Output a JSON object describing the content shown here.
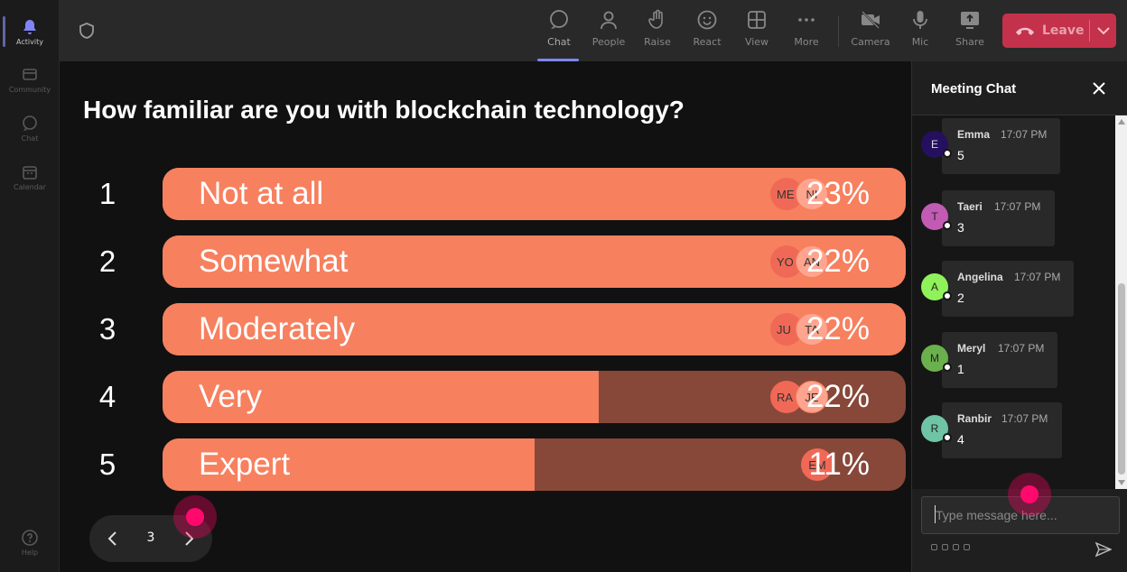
{
  "rail": {
    "items": [
      {
        "label": "Activity",
        "icon": "bell-icon",
        "active": true
      },
      {
        "label": "Community",
        "icon": "community-icon",
        "active": false
      },
      {
        "label": "Chat",
        "icon": "chat-icon",
        "active": false
      },
      {
        "label": "Calendar",
        "icon": "calendar-icon",
        "active": false
      },
      {
        "label": "Help",
        "icon": "help-icon",
        "active": false
      }
    ]
  },
  "toolbar": {
    "chat": "Chat",
    "people": "People",
    "raise": "Raise",
    "react": "React",
    "view": "View",
    "more": "More",
    "camera": "Camera",
    "mic": "Mic",
    "share": "Share",
    "leave": "Leave"
  },
  "poll": {
    "question": "How familiar are you with blockchain technology?",
    "options": [
      {
        "num": "1",
        "label": "Not at all",
        "pct": "23%",
        "fill": 1.0,
        "voters": [
          "ME",
          "NI"
        ]
      },
      {
        "num": "2",
        "label": "Somewhat",
        "pct": "22%",
        "fill": 1.0,
        "voters": [
          "YO",
          "AN"
        ]
      },
      {
        "num": "3",
        "label": "Moderately",
        "pct": "22%",
        "fill": 1.0,
        "voters": [
          "JU",
          "TA"
        ]
      },
      {
        "num": "4",
        "label": "Very",
        "pct": "22%",
        "fill": 0.587,
        "voters": [
          "RA",
          "JE"
        ]
      },
      {
        "num": "5",
        "label": "Expert",
        "pct": "11%",
        "fill": 0.501,
        "voters": [
          "EM"
        ]
      }
    ],
    "page": "3"
  },
  "chat": {
    "title": "Meeting Chat",
    "messages": [
      {
        "initial": "E",
        "name": "Emma",
        "time": "17:07 PM",
        "text": "5",
        "color": "#24105e"
      },
      {
        "initial": "T",
        "name": "Taeri",
        "time": "17:07 PM",
        "text": "3",
        "color": "#c25bb3"
      },
      {
        "initial": "A",
        "name": "Angelina",
        "time": "17:07 PM",
        "text": "2",
        "color": "#8ff25a"
      },
      {
        "initial": "M",
        "name": "Meryl",
        "time": "17:07 PM",
        "text": "1",
        "color": "#6ab04c"
      },
      {
        "initial": "R",
        "name": "Ranbir",
        "time": "17:07 PM",
        "text": "4",
        "color": "#6ec4a5"
      }
    ],
    "input_placeholder": "Type message here..."
  },
  "colors": {
    "accent": "#7f85f5",
    "bar": "#f7805f",
    "bar_dim": "#87483a",
    "leave": "#c4314b",
    "cursor": "#ff0a6c"
  }
}
